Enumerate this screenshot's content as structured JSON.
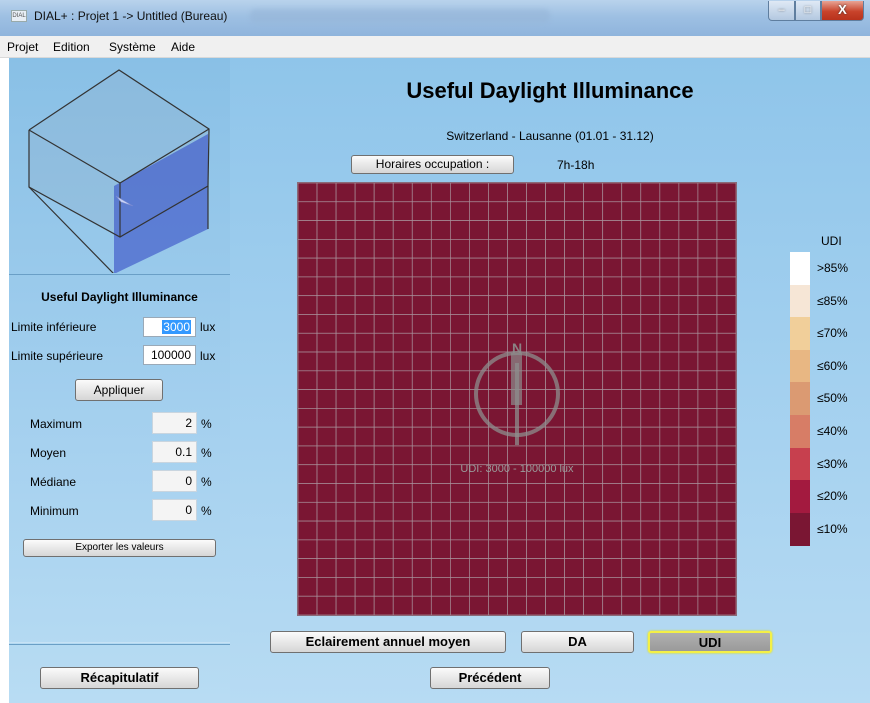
{
  "window": {
    "title": "DIAL+ : Projet 1 -> Untitled (Bureau)",
    "icon_label": "DIAL",
    "minimize_glyph": "–",
    "maximize_glyph": "□",
    "close_glyph": "X"
  },
  "menu": [
    "Projet",
    "Edition",
    "Système",
    "Aide"
  ],
  "left_panel": {
    "heading": "Useful Daylight Illuminance",
    "limite_inferieure_label": "Limite inférieure",
    "limite_inferieure_value": "3000",
    "limite_superieure_label": "Limite supérieure",
    "limite_superieure_value": "100000",
    "unit_lux": "lux",
    "apply_label": "Appliquer",
    "stats": [
      {
        "label": "Maximum",
        "value": "2",
        "unit": "%"
      },
      {
        "label": "Moyen",
        "value": "0.1",
        "unit": "%"
      },
      {
        "label": "Médiane",
        "value": "0",
        "unit": "%"
      },
      {
        "label": "Minimum",
        "value": "0",
        "unit": "%"
      }
    ],
    "export_label": "Exporter les valeurs",
    "summary_label": "Récapitulatif"
  },
  "main": {
    "title": "Useful Daylight Illuminance",
    "location": "Switzerland - Lausanne (01.01 - 31.12)",
    "occupation_button": "Horaires occupation :",
    "occupation_hours": "7h-18h",
    "compass_letter": "N",
    "tabs": [
      "Eclairement annuel moyen",
      "DA",
      "UDI"
    ],
    "active_tab": "UDI",
    "back_label": "Précédent"
  },
  "chart_data": {
    "type": "heatmap",
    "annotation": "UDI: 3000 - 100000 lux",
    "rows": 23,
    "cols": 23,
    "uniform_level": "≤10%",
    "cell_color": "#7a1633",
    "legend": {
      "title": "UDI",
      "items": [
        {
          "label": ">85%",
          "color": "#ffffff"
        },
        {
          "label": "≤85%",
          "color": "#f6e6d6"
        },
        {
          "label": "≤70%",
          "color": "#f1cf9a"
        },
        {
          "label": "≤60%",
          "color": "#e8b783"
        },
        {
          "label": "≤50%",
          "color": "#db9a72"
        },
        {
          "label": "≤40%",
          "color": "#d77d66"
        },
        {
          "label": "≤30%",
          "color": "#c7404e"
        },
        {
          "label": "≤20%",
          "color": "#a31a3f"
        },
        {
          "label": "≤10%",
          "color": "#7a1633"
        }
      ]
    }
  }
}
